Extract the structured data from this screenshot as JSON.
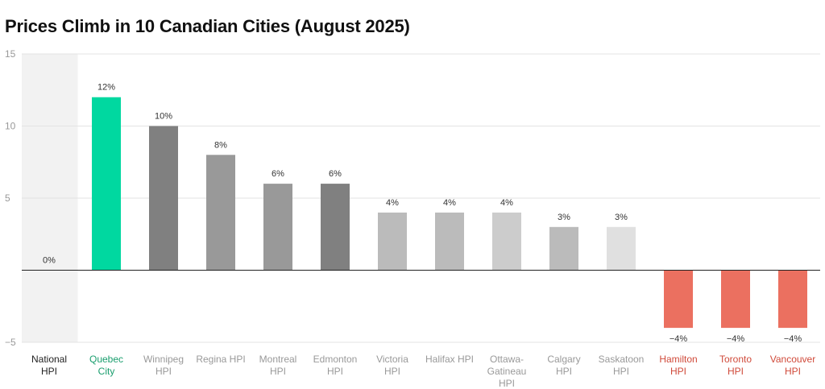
{
  "chart_data": {
    "type": "bar",
    "title": "Prices Climb in 10 Canadian Cities (August 2025)",
    "categories": [
      [
        "National",
        "HPI"
      ],
      [
        "Quebec",
        "City"
      ],
      [
        "Winnipeg",
        "HPI"
      ],
      [
        "Regina HPI"
      ],
      [
        "Montreal",
        "HPI"
      ],
      [
        "Edmonton",
        "HPI"
      ],
      [
        "Victoria",
        "HPI"
      ],
      [
        "Halifax HPI"
      ],
      [
        "Ottawa-",
        "Gatineau",
        "HPI"
      ],
      [
        "Calgary",
        "HPI"
      ],
      [
        "Saskatoon",
        "HPI"
      ],
      [
        "Hamilton",
        "HPI"
      ],
      [
        "Toronto",
        "HPI"
      ],
      [
        "Vancouver",
        "HPI"
      ]
    ],
    "values": [
      0,
      12,
      10,
      8,
      6,
      6,
      4,
      4,
      4,
      3,
      3,
      -4,
      -4,
      -4
    ],
    "value_labels": [
      "0%",
      "12%",
      "10%",
      "8%",
      "6%",
      "6%",
      "4%",
      "4%",
      "4%",
      "3%",
      "3%",
      "−4%",
      "−4%",
      "−4%"
    ],
    "bar_colors": [
      "#f2f2f2",
      "#00d8a0",
      "#808080",
      "#999999",
      "#999999",
      "#808080",
      "#bbbbbb",
      "#bbbbbb",
      "#cccccc",
      "#bbbbbb",
      "#e0e0e0",
      "#eb7060",
      "#eb7060",
      "#eb7060"
    ],
    "label_colors": [
      "#222222",
      "#1a9e6e",
      "#999999",
      "#999999",
      "#999999",
      "#999999",
      "#999999",
      "#999999",
      "#999999",
      "#999999",
      "#999999",
      "#d04a3a",
      "#d04a3a",
      "#d04a3a"
    ],
    "highlight_band_index": 0,
    "highlight_band_color": "#f2f2f2",
    "yticks": [
      15,
      10,
      5,
      -5
    ],
    "ytick_labels": [
      "15",
      "10",
      "5",
      "−5"
    ],
    "ylim": [
      -5,
      15
    ],
    "grid": true,
    "legend": "none"
  }
}
